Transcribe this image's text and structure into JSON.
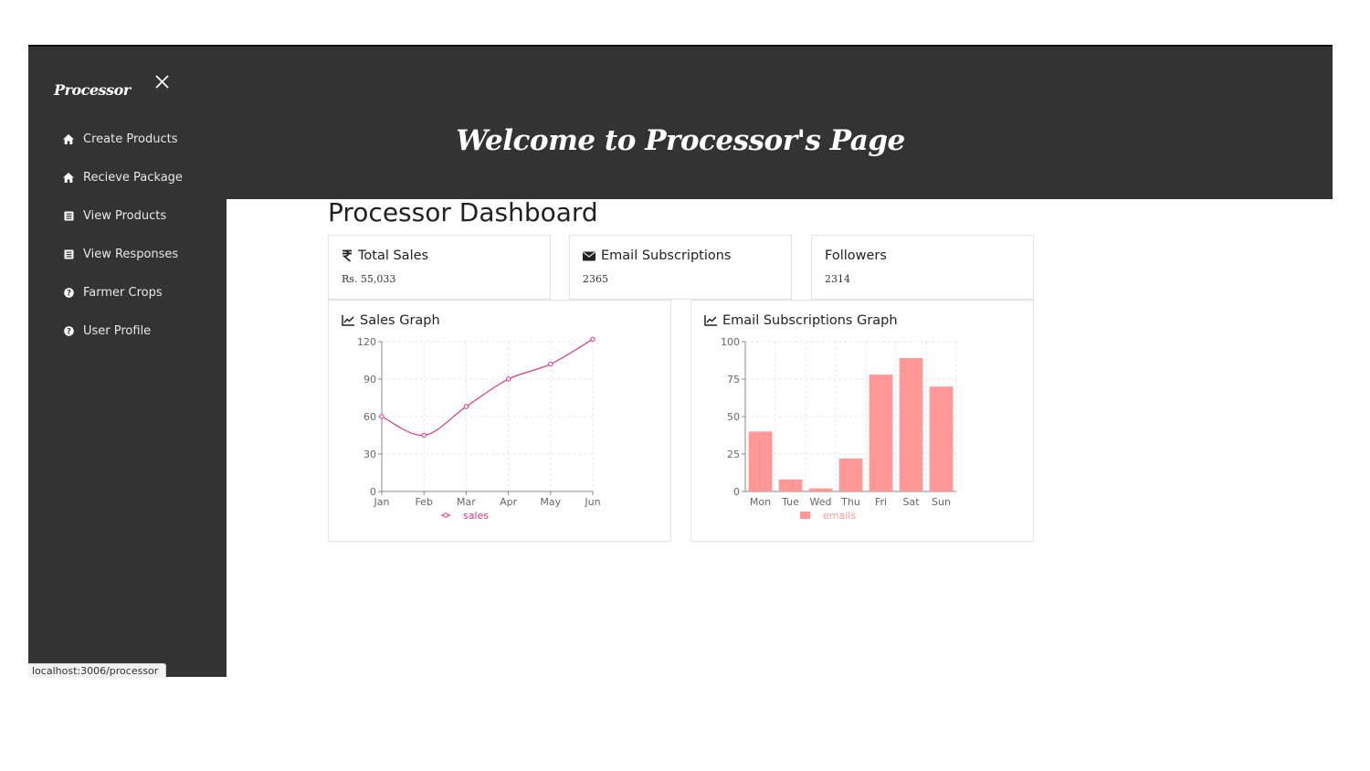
{
  "app": {
    "brand": "Processor",
    "welcome": "Welcome to Processor's Page",
    "status_url": "localhost:3006/processor"
  },
  "sidebar": {
    "items": [
      {
        "label": "Create Products",
        "icon": "home-icon"
      },
      {
        "label": "Recieve Package",
        "icon": "home-icon"
      },
      {
        "label": "View Products",
        "icon": "list-icon"
      },
      {
        "label": "View Responses",
        "icon": "list-icon"
      },
      {
        "label": "Farmer Crops",
        "icon": "question-circle-icon"
      },
      {
        "label": "User Profile",
        "icon": "question-circle-icon"
      }
    ]
  },
  "dashboard": {
    "title": "Processor Dashboard",
    "stats": [
      {
        "title": "Total Sales",
        "value": "Rs. 55,033",
        "icon": "rupee-icon"
      },
      {
        "title": "Email Subscriptions",
        "value": "2365",
        "icon": "envelope-icon"
      },
      {
        "title": "Followers",
        "value": "2314",
        "icon": ""
      }
    ],
    "sales_graph_title": "Sales Graph",
    "email_graph_title": "Email Subscriptions Graph"
  },
  "colors": {
    "sidebar_bg": "#333333",
    "line_series": "#d6368a",
    "bar_series": "#ff9896"
  },
  "chart_data": [
    {
      "type": "line",
      "title": "Sales Graph",
      "categories": [
        "Jan",
        "Feb",
        "Mar",
        "Apr",
        "May",
        "Jun"
      ],
      "series": [
        {
          "name": "sales",
          "values": [
            60,
            45,
            68,
            90,
            102,
            122
          ]
        }
      ],
      "ylim": [
        0,
        120
      ],
      "yticks": [
        0,
        30,
        60,
        90,
        120
      ],
      "grid": true,
      "legend": "bottom"
    },
    {
      "type": "bar",
      "title": "Email Subscriptions Graph",
      "categories": [
        "Mon",
        "Tue",
        "Wed",
        "Thu",
        "Fri",
        "Sat",
        "Sun"
      ],
      "series": [
        {
          "name": "emails",
          "values": [
            40,
            8,
            2,
            22,
            78,
            89,
            70
          ]
        }
      ],
      "ylim": [
        0,
        100
      ],
      "yticks": [
        0,
        25,
        50,
        75,
        100
      ],
      "grid": true,
      "legend": "bottom"
    }
  ]
}
